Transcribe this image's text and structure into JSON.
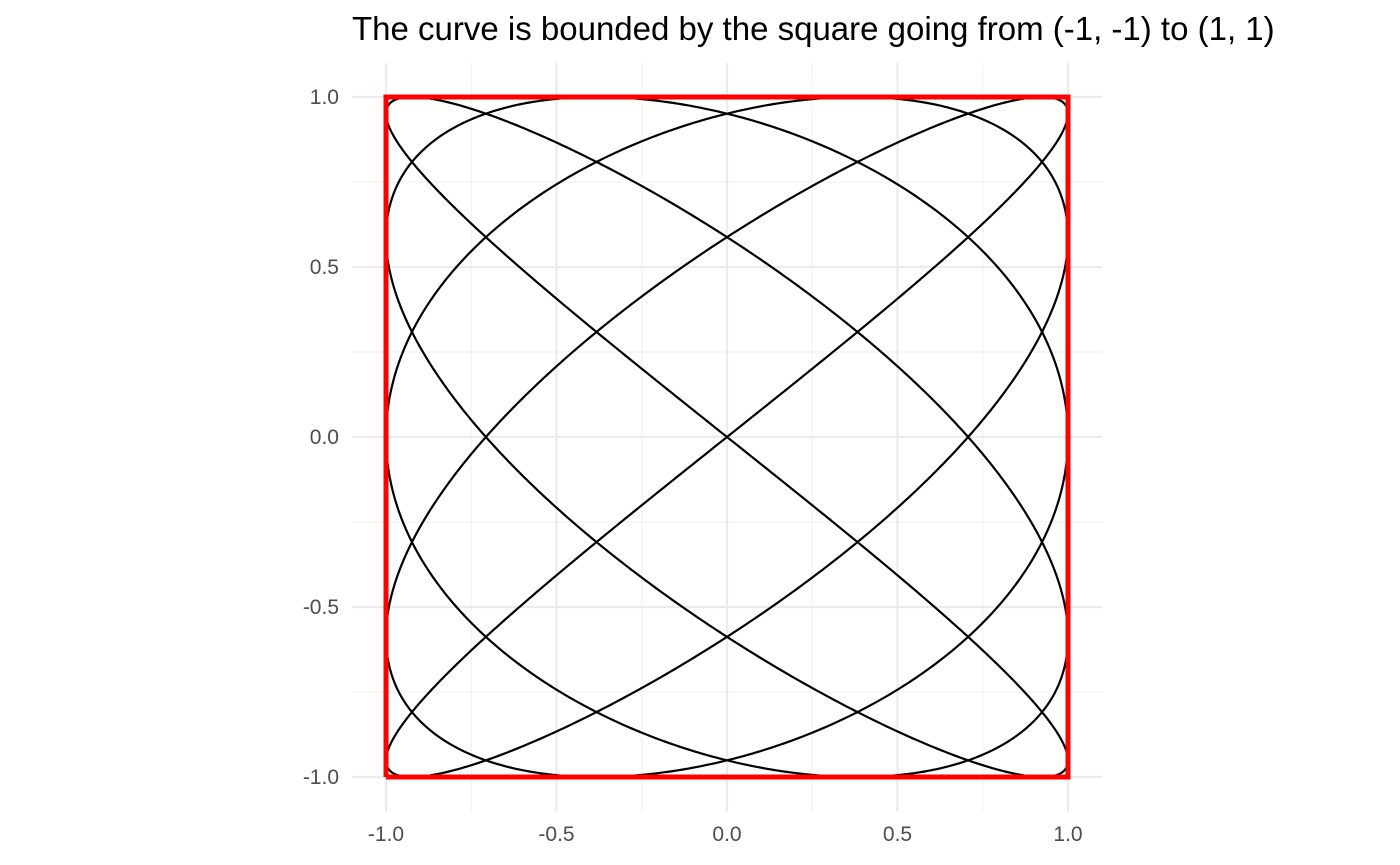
{
  "chart_data": {
    "type": "line",
    "title": "The curve is bounded by the square going from (-1, -1) to (1, 1)",
    "xlabel": "",
    "ylabel": "",
    "xlim": [
      -1,
      1
    ],
    "ylim": [
      -1,
      1
    ],
    "x_ticks": [
      "-1.0",
      "-0.5",
      "0.0",
      "0.5",
      "1.0"
    ],
    "y_ticks": [
      "1.0",
      "0.5",
      "0.0",
      "-0.5",
      "-1.0"
    ],
    "x_tick_values": [
      -1.0,
      -0.5,
      0.0,
      0.5,
      1.0
    ],
    "y_tick_values": [
      1.0,
      0.5,
      0.0,
      -0.5,
      -1.0
    ],
    "grid": true,
    "series": [
      {
        "kind": "parametric-curve",
        "x_equation": "sin(5t)",
        "y_equation": "sin(4t)",
        "t_range": [
          0,
          6.283185307
        ],
        "color": "#000000"
      },
      {
        "kind": "bounding-square",
        "x": [
          -1,
          1,
          1,
          -1,
          -1
        ],
        "y": [
          -1,
          -1,
          1,
          1,
          -1
        ],
        "color": "#ff0000"
      }
    ]
  }
}
